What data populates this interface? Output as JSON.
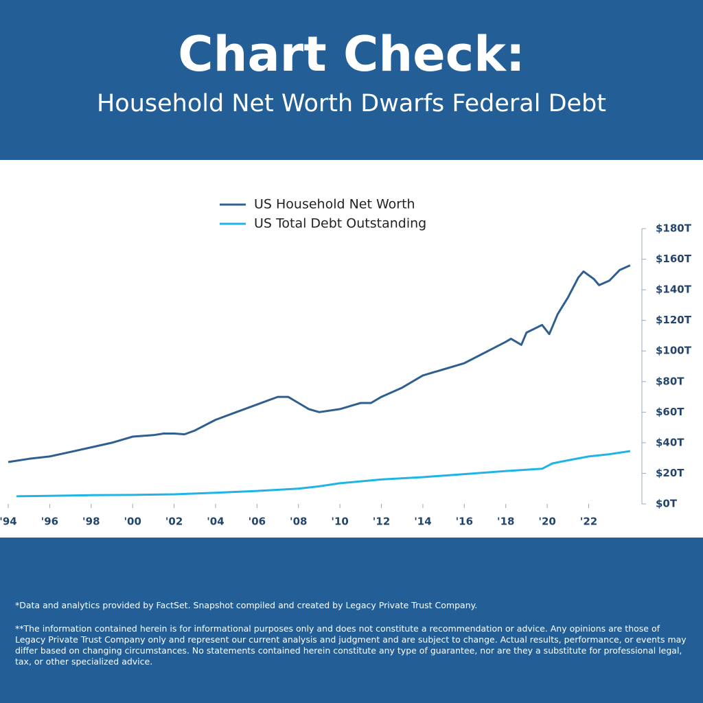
{
  "header": {
    "title": "Chart Check:",
    "subtitle": "Household Net Worth Dwarfs Federal Debt"
  },
  "chart_data": {
    "type": "line",
    "xlim": [
      1994,
      2024.5
    ],
    "xticks": [
      {
        "value": 1994,
        "label": "'94"
      },
      {
        "value": 1996,
        "label": "'96"
      },
      {
        "value": 1998,
        "label": "'98"
      },
      {
        "value": 2000,
        "label": "'00"
      },
      {
        "value": 2002,
        "label": "'02"
      },
      {
        "value": 2004,
        "label": "'04"
      },
      {
        "value": 2006,
        "label": "'06"
      },
      {
        "value": 2008,
        "label": "'08"
      },
      {
        "value": 2010,
        "label": "'10"
      },
      {
        "value": 2012,
        "label": "'12"
      },
      {
        "value": 2014,
        "label": "'14"
      },
      {
        "value": 2016,
        "label": "'16"
      },
      {
        "value": 2018,
        "label": "'18"
      },
      {
        "value": 2020,
        "label": "'20"
      },
      {
        "value": 2022,
        "label": "'22"
      }
    ],
    "ylim": [
      0,
      180
    ],
    "yticks": [
      {
        "value": 0,
        "label": "$0T"
      },
      {
        "value": 20,
        "label": "$20T"
      },
      {
        "value": 40,
        "label": "$40T"
      },
      {
        "value": 60,
        "label": "$60T"
      },
      {
        "value": 80,
        "label": "$80T"
      },
      {
        "value": 100,
        "label": "$100T"
      },
      {
        "value": 120,
        "label": "$120T"
      },
      {
        "value": 140,
        "label": "$140T"
      },
      {
        "value": 160,
        "label": "$160T"
      },
      {
        "value": 180,
        "label": "$180T"
      }
    ],
    "series": [
      {
        "name": "US Household Net Worth",
        "color": "#2f5f8f",
        "x": [
          1994,
          1995,
          1996,
          1997,
          1998,
          1999,
          2000,
          2001,
          2001.5,
          2002,
          2002.5,
          2003,
          2004,
          2005,
          2006,
          2007,
          2007.5,
          2008,
          2008.5,
          2009,
          2010,
          2011,
          2011.5,
          2012,
          2013,
          2014,
          2015,
          2016,
          2017,
          2018,
          2018.25,
          2018.75,
          2019,
          2019.75,
          2020.1,
          2020.5,
          2021,
          2021.5,
          2021.75,
          2022.25,
          2022.5,
          2023,
          2023.5,
          2024
        ],
        "values": [
          27.4,
          29.5,
          31,
          34,
          37,
          40,
          44,
          45,
          46,
          46,
          45.5,
          48,
          55,
          60,
          65,
          70,
          70,
          66,
          62,
          60,
          62,
          66,
          66,
          70,
          76,
          84,
          88,
          92,
          99,
          106,
          108,
          104,
          112,
          117,
          111,
          124,
          135,
          148,
          152,
          147,
          143,
          146,
          153,
          156
        ]
      },
      {
        "name": "US Total Debt Outstanding",
        "color": "#1fb4e6",
        "x": [
          1994.4,
          1996,
          1998,
          2000,
          2002,
          2004,
          2006,
          2008,
          2009,
          2010,
          2012,
          2014,
          2016,
          2018,
          2019.75,
          2020.25,
          2021,
          2022,
          2023,
          2024
        ],
        "values": [
          5,
          5.3,
          5.7,
          5.9,
          6.3,
          7.3,
          8.5,
          10,
          11.5,
          13.5,
          16,
          17.5,
          19.5,
          21.5,
          23,
          26.5,
          28.5,
          31,
          32.5,
          34.5
        ]
      }
    ]
  },
  "footnotes": [
    "*Data and analytics provided by FactSet. Snapshot compiled and created by Legacy Private Trust Company.",
    "**The information contained herein is for informational purposes only and does not constitute a recommendation or advice. Any opinions are those of Legacy Private Trust Company only and represent our current analysis and judgment and are subject to change. Actual results, performance, or events may differ based on changing circumstances. No statements contained herein constitute any type of guarantee, nor are they a substitute for professional legal, tax, or other specialized advice."
  ]
}
